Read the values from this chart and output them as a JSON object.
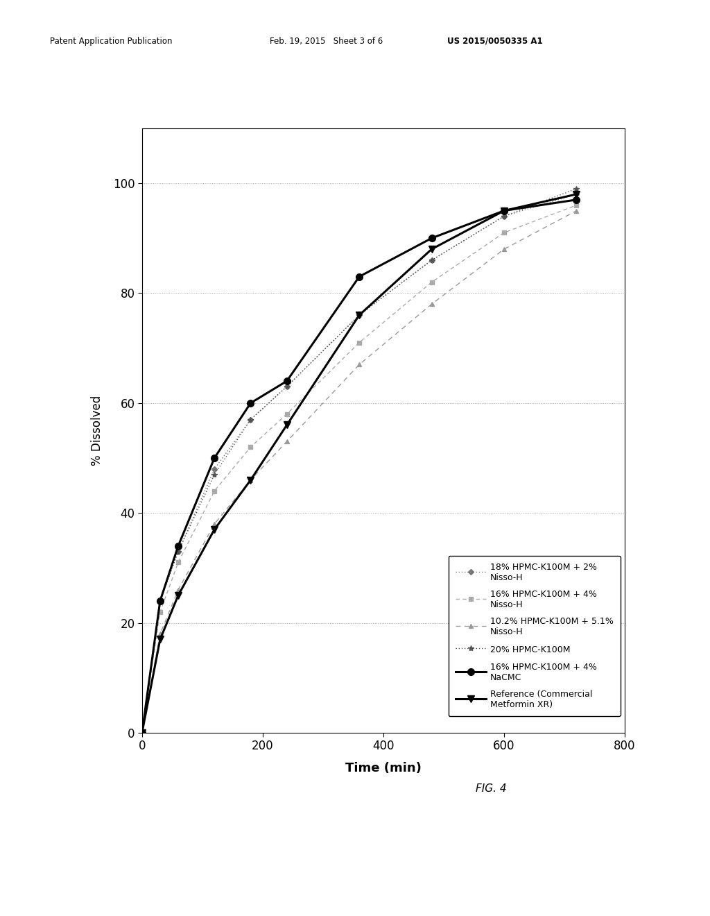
{
  "header_left": "Patent Application Publication",
  "header_mid": "Feb. 19, 2015   Sheet 3 of 6",
  "header_right": "US 2015/0050335 A1",
  "fig_label": "FIG. 4",
  "xlabel": "Time (min)",
  "ylabel": "% Dissolved",
  "xlim": [
    0,
    800
  ],
  "ylim": [
    0,
    110
  ],
  "xticks": [
    0,
    200,
    400,
    600,
    800
  ],
  "yticks": [
    0,
    20,
    40,
    60,
    80,
    100
  ],
  "grid_color": "#aaaaaa",
  "background_color": "#ffffff",
  "series": [
    {
      "label": "18% HPMC-K100M + 2%\nNisso-H",
      "x": [
        0,
        30,
        60,
        120,
        180,
        240,
        360,
        480,
        600,
        720
      ],
      "y": [
        0,
        24,
        33,
        48,
        57,
        63,
        76,
        86,
        94,
        98
      ],
      "color": "#777777",
      "linestyle": "dotted",
      "marker": "D",
      "markersize": 4,
      "linewidth": 1.0
    },
    {
      "label": "16% HPMC-K100M + 4%\nNisso-H",
      "x": [
        0,
        30,
        60,
        120,
        180,
        240,
        360,
        480,
        600,
        720
      ],
      "y": [
        0,
        22,
        31,
        44,
        52,
        58,
        71,
        82,
        91,
        96
      ],
      "color": "#aaaaaa",
      "linestyle": "dashed",
      "marker": "s",
      "markersize": 4,
      "linewidth": 1.0
    },
    {
      "label": "10.2% HPMC-K100M + 5.1%\nNisso-H",
      "x": [
        0,
        30,
        60,
        120,
        180,
        240,
        360,
        480,
        600,
        720
      ],
      "y": [
        0,
        18,
        26,
        38,
        46,
        53,
        67,
        78,
        88,
        95
      ],
      "color": "#999999",
      "linestyle": "dashed",
      "marker": "^",
      "markersize": 4,
      "linewidth": 1.0
    },
    {
      "label": "20% HPMC-K100M",
      "x": [
        0,
        30,
        60,
        120,
        180,
        240,
        360,
        480,
        600,
        720
      ],
      "y": [
        0,
        24,
        33,
        47,
        57,
        63,
        76,
        86,
        94,
        99
      ],
      "color": "#555555",
      "linestyle": "dotted",
      "marker": "*",
      "markersize": 6,
      "linewidth": 1.0
    },
    {
      "label": "16% HPMC-K100M + 4%\nNaCMC",
      "x": [
        0,
        30,
        60,
        120,
        180,
        240,
        360,
        480,
        600,
        720
      ],
      "y": [
        0,
        24,
        34,
        50,
        60,
        64,
        83,
        90,
        95,
        97
      ],
      "color": "#000000",
      "linestyle": "solid",
      "marker": "o",
      "markersize": 7,
      "linewidth": 2.2
    },
    {
      "label": "Reference (Commercial\nMetformin XR)",
      "x": [
        0,
        30,
        60,
        120,
        180,
        240,
        360,
        480,
        600,
        720
      ],
      "y": [
        0,
        17,
        25,
        37,
        46,
        56,
        76,
        88,
        95,
        98
      ],
      "color": "#000000",
      "linestyle": "solid",
      "marker": "v",
      "markersize": 7,
      "linewidth": 2.2
    }
  ]
}
